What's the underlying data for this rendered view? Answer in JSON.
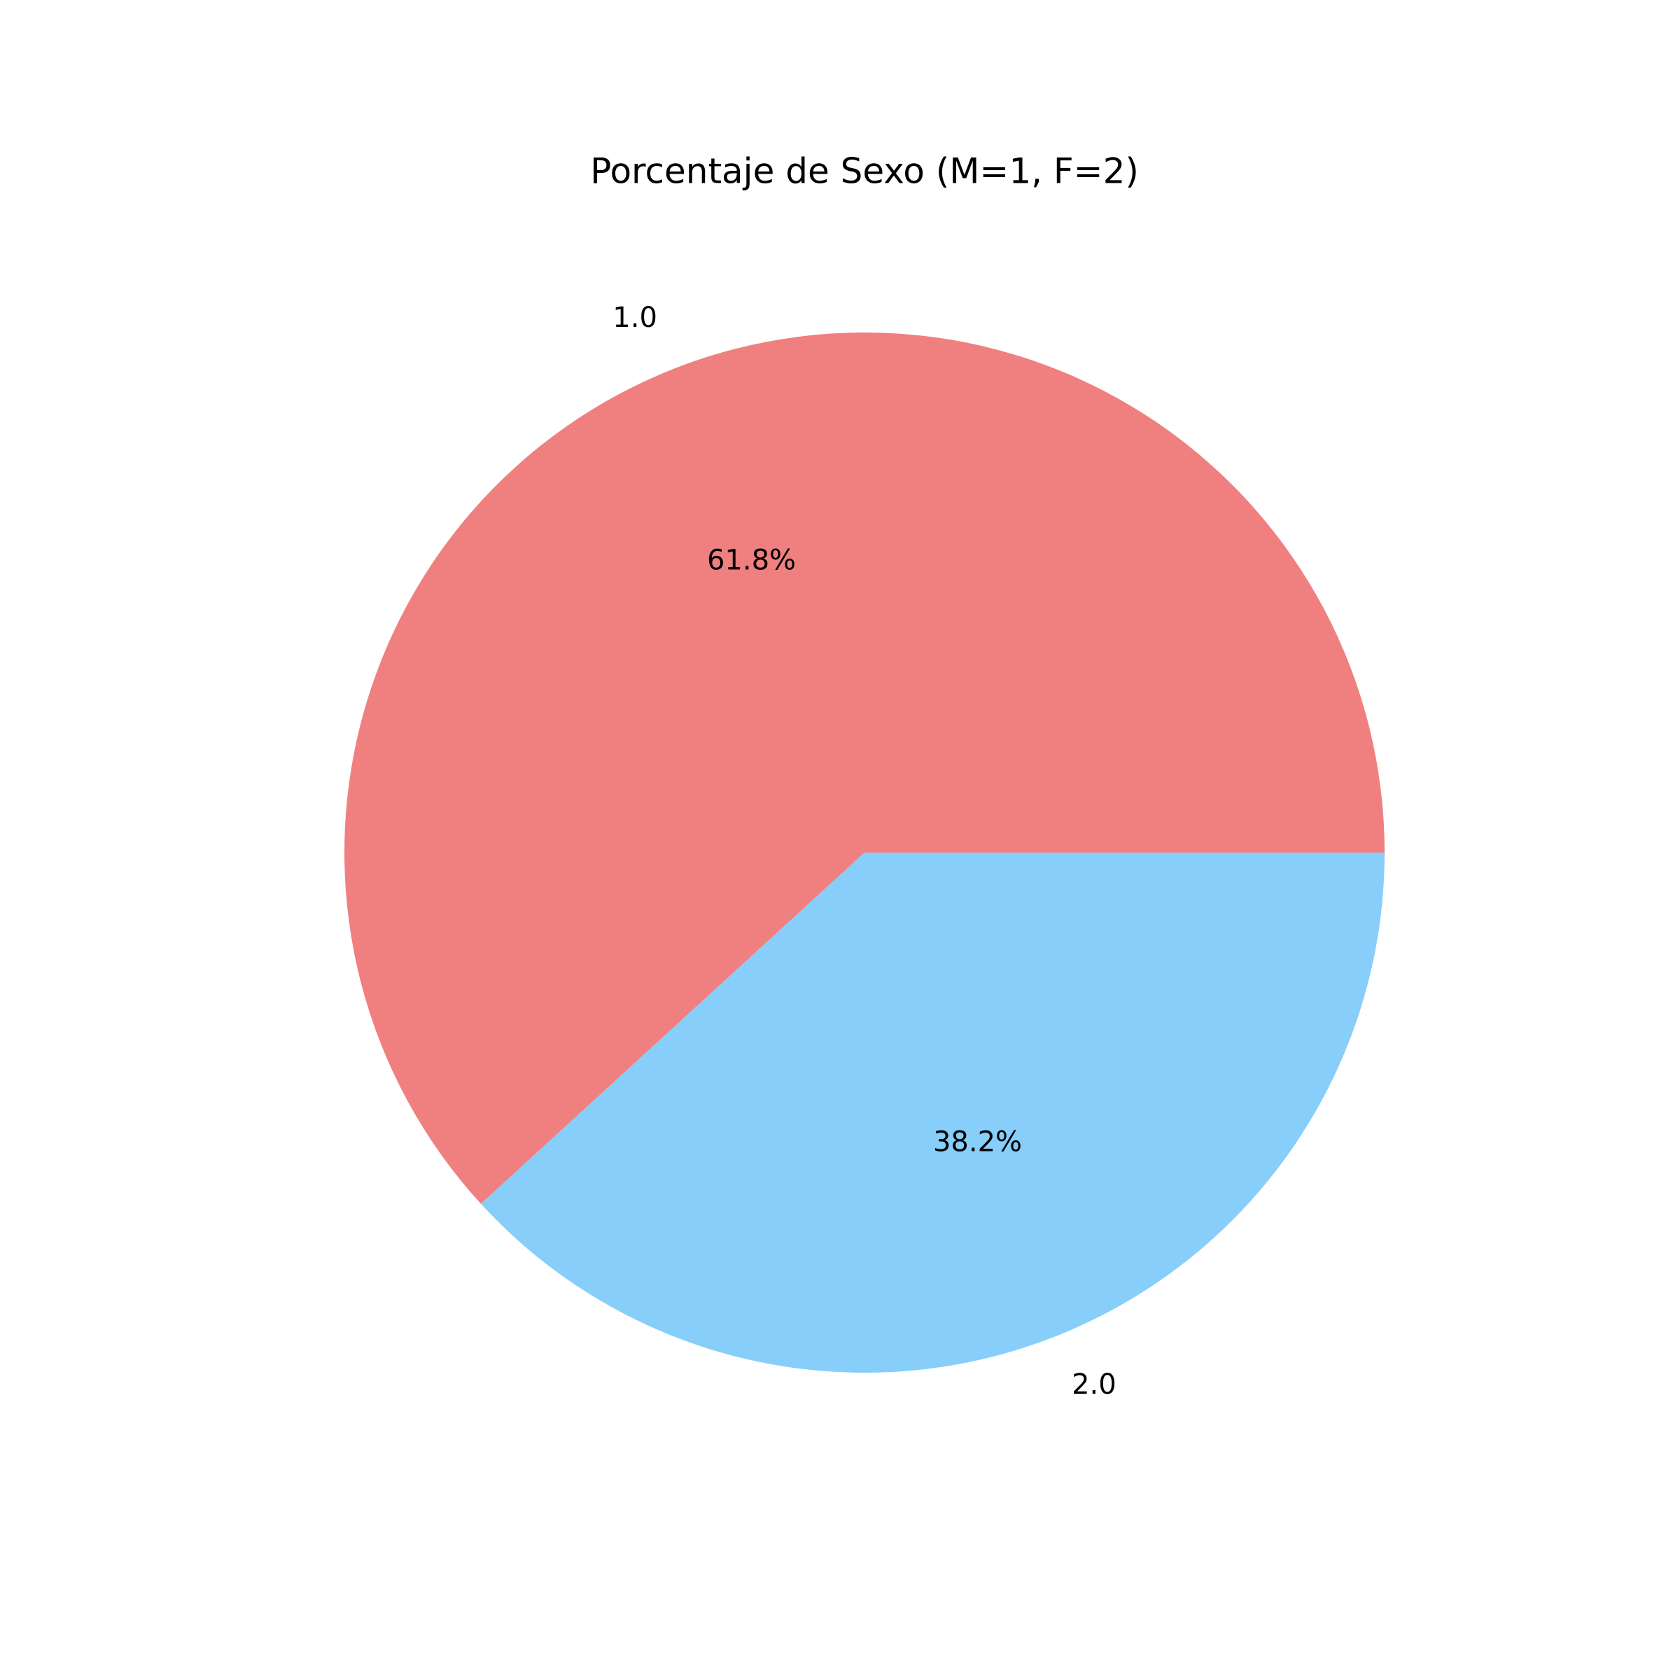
{
  "chart_data": {
    "type": "pie",
    "title": "Porcentaje de Sexo (M=1, F=2)",
    "slices": [
      {
        "label": "1.0",
        "value": 61.8,
        "pct_label": "61.8%",
        "color": "#F08080"
      },
      {
        "label": "2.0",
        "value": 38.2,
        "pct_label": "38.2%",
        "color": "#87CEFA"
      }
    ],
    "start_angle": 0,
    "direction": "counterclockwise"
  }
}
